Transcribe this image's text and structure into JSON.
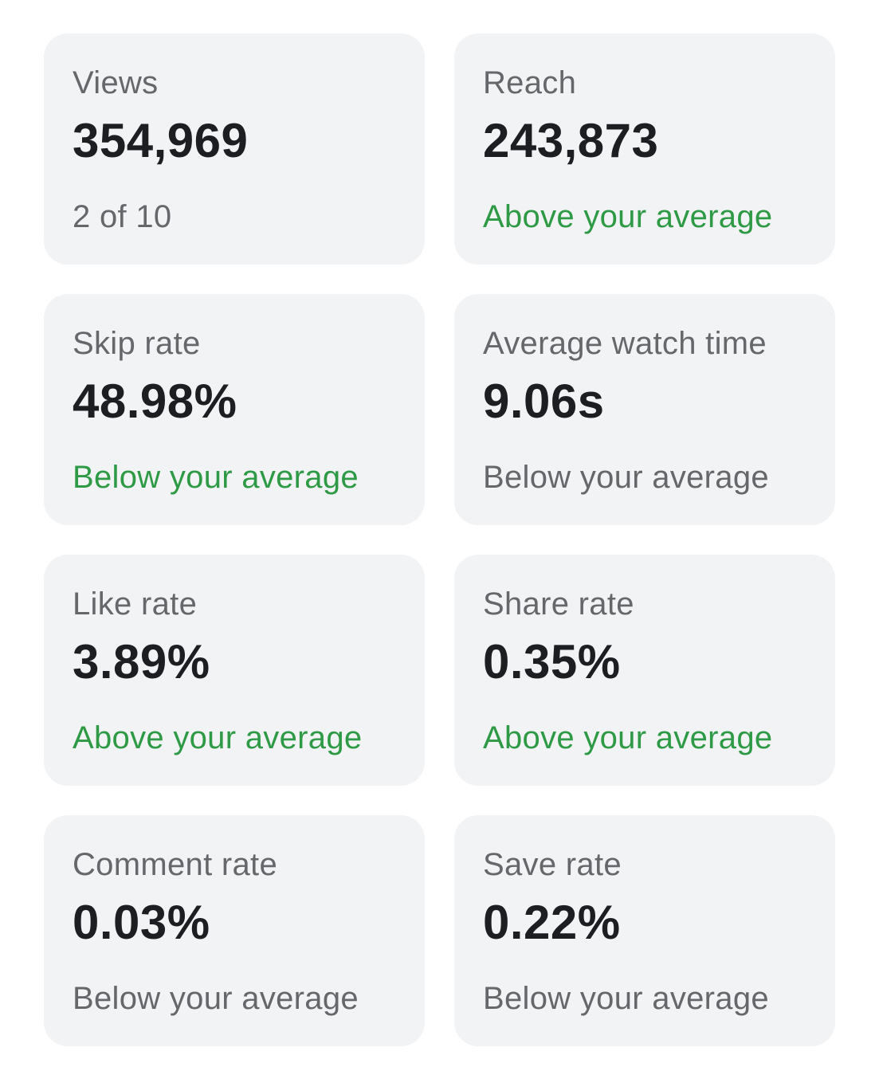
{
  "colors": {
    "card_background": "#f2f3f5",
    "label": "#65676b",
    "value": "#1c1e21",
    "status_neutral": "#65676b",
    "status_positive": "#2e9a45"
  },
  "metrics": [
    {
      "label": "Views",
      "value": "354,969",
      "status": "2 of 10",
      "status_tone": "neutral"
    },
    {
      "label": "Reach",
      "value": "243,873",
      "status": "Above your average",
      "status_tone": "positive"
    },
    {
      "label": "Skip rate",
      "value": "48.98%",
      "status": "Below your average",
      "status_tone": "positive"
    },
    {
      "label": "Average watch time",
      "value": "9.06s",
      "status": "Below your average",
      "status_tone": "neutral"
    },
    {
      "label": "Like rate",
      "value": "3.89%",
      "status": "Above your average",
      "status_tone": "positive"
    },
    {
      "label": "Share rate",
      "value": "0.35%",
      "status": "Above your average",
      "status_tone": "positive"
    },
    {
      "label": "Comment rate",
      "value": "0.03%",
      "status": "Below your average",
      "status_tone": "neutral"
    },
    {
      "label": "Save rate",
      "value": "0.22%",
      "status": "Below your average",
      "status_tone": "neutral"
    }
  ]
}
